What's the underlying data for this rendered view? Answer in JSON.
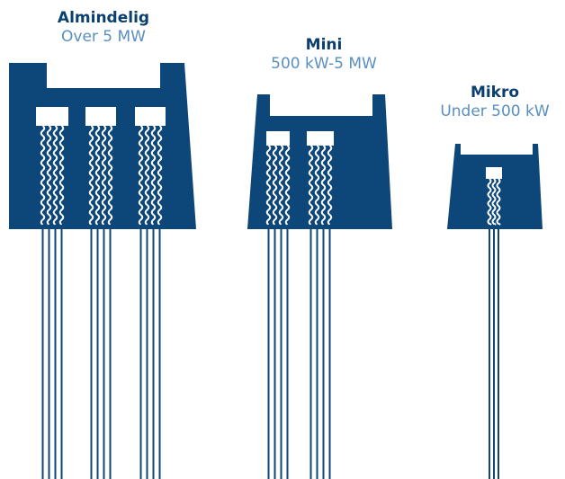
{
  "colors": {
    "building": "#0d4678",
    "heading": "#0b3f6e",
    "subtitle": "#5a8fc2",
    "wire": "#0d4678",
    "background": "#ffffff"
  },
  "plants": [
    {
      "name": "Almindelig",
      "range": "Over 5 MW",
      "turbines": 3
    },
    {
      "name": "Mini",
      "range": "500 kW-5 MW",
      "turbines": 2
    },
    {
      "name": "Mikro",
      "range": "Under 500 kW",
      "turbines": 1
    }
  ]
}
